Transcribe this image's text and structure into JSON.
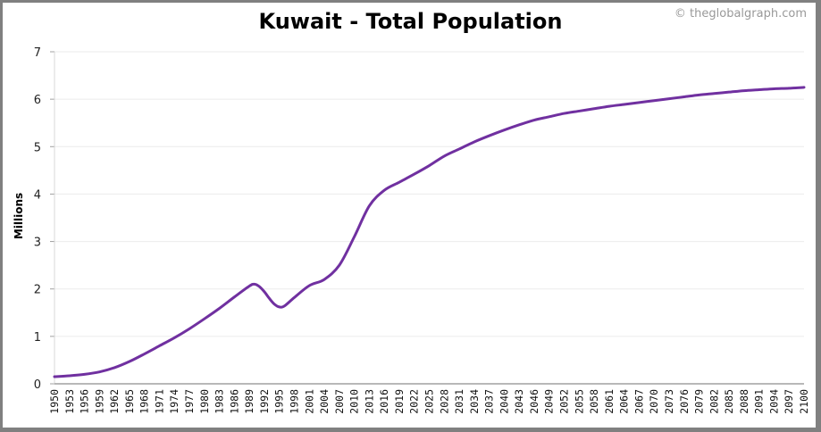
{
  "chart_data": {
    "type": "line",
    "title": "Kuwait - Total Population",
    "credit": "© theglobalgraph.com",
    "xlabel": "",
    "ylabel": "Millions",
    "ylim": [
      0,
      7
    ],
    "xlim": [
      1950,
      2100
    ],
    "grid": true,
    "y_ticks": [
      0,
      1,
      2,
      3,
      4,
      5,
      6,
      7
    ],
    "x_ticks": [
      1950,
      1953,
      1956,
      1959,
      1962,
      1965,
      1968,
      1971,
      1974,
      1977,
      1980,
      1983,
      1986,
      1989,
      1992,
      1995,
      1998,
      2001,
      2004,
      2007,
      2010,
      2013,
      2016,
      2019,
      2022,
      2025,
      2028,
      2031,
      2034,
      2037,
      2040,
      2043,
      2046,
      2049,
      2052,
      2055,
      2058,
      2061,
      2064,
      2067,
      2070,
      2073,
      2076,
      2079,
      2082,
      2085,
      2088,
      2091,
      2094,
      2097,
      2100
    ],
    "series": [
      {
        "name": "Total Population",
        "color": "#7030A0",
        "x": [
          1950,
          1953,
          1956,
          1959,
          1962,
          1965,
          1968,
          1971,
          1974,
          1977,
          1980,
          1983,
          1986,
          1989,
          1990,
          1991,
          1992,
          1993,
          1994,
          1995,
          1996,
          1998,
          2001,
          2004,
          2007,
          2010,
          2013,
          2016,
          2019,
          2022,
          2025,
          2028,
          2031,
          2034,
          2037,
          2040,
          2043,
          2046,
          2049,
          2052,
          2055,
          2058,
          2061,
          2064,
          2067,
          2070,
          2073,
          2076,
          2079,
          2082,
          2085,
          2088,
          2091,
          2094,
          2097,
          2100
        ],
        "values": [
          0.15,
          0.17,
          0.2,
          0.25,
          0.34,
          0.47,
          0.63,
          0.8,
          0.97,
          1.16,
          1.37,
          1.59,
          1.83,
          2.06,
          2.1,
          2.05,
          1.94,
          1.8,
          1.68,
          1.62,
          1.64,
          1.82,
          2.07,
          2.2,
          2.5,
          3.1,
          3.75,
          4.08,
          4.25,
          4.42,
          4.6,
          4.8,
          4.95,
          5.1,
          5.23,
          5.35,
          5.46,
          5.56,
          5.63,
          5.7,
          5.75,
          5.8,
          5.85,
          5.89,
          5.93,
          5.97,
          6.01,
          6.05,
          6.09,
          6.12,
          6.15,
          6.18,
          6.2,
          6.22,
          6.23,
          6.25
        ]
      }
    ]
  },
  "colors": {
    "frame": "#808080",
    "grid": "#ebebeb",
    "axis": "#a0a0a0",
    "line": "#7030A0"
  }
}
